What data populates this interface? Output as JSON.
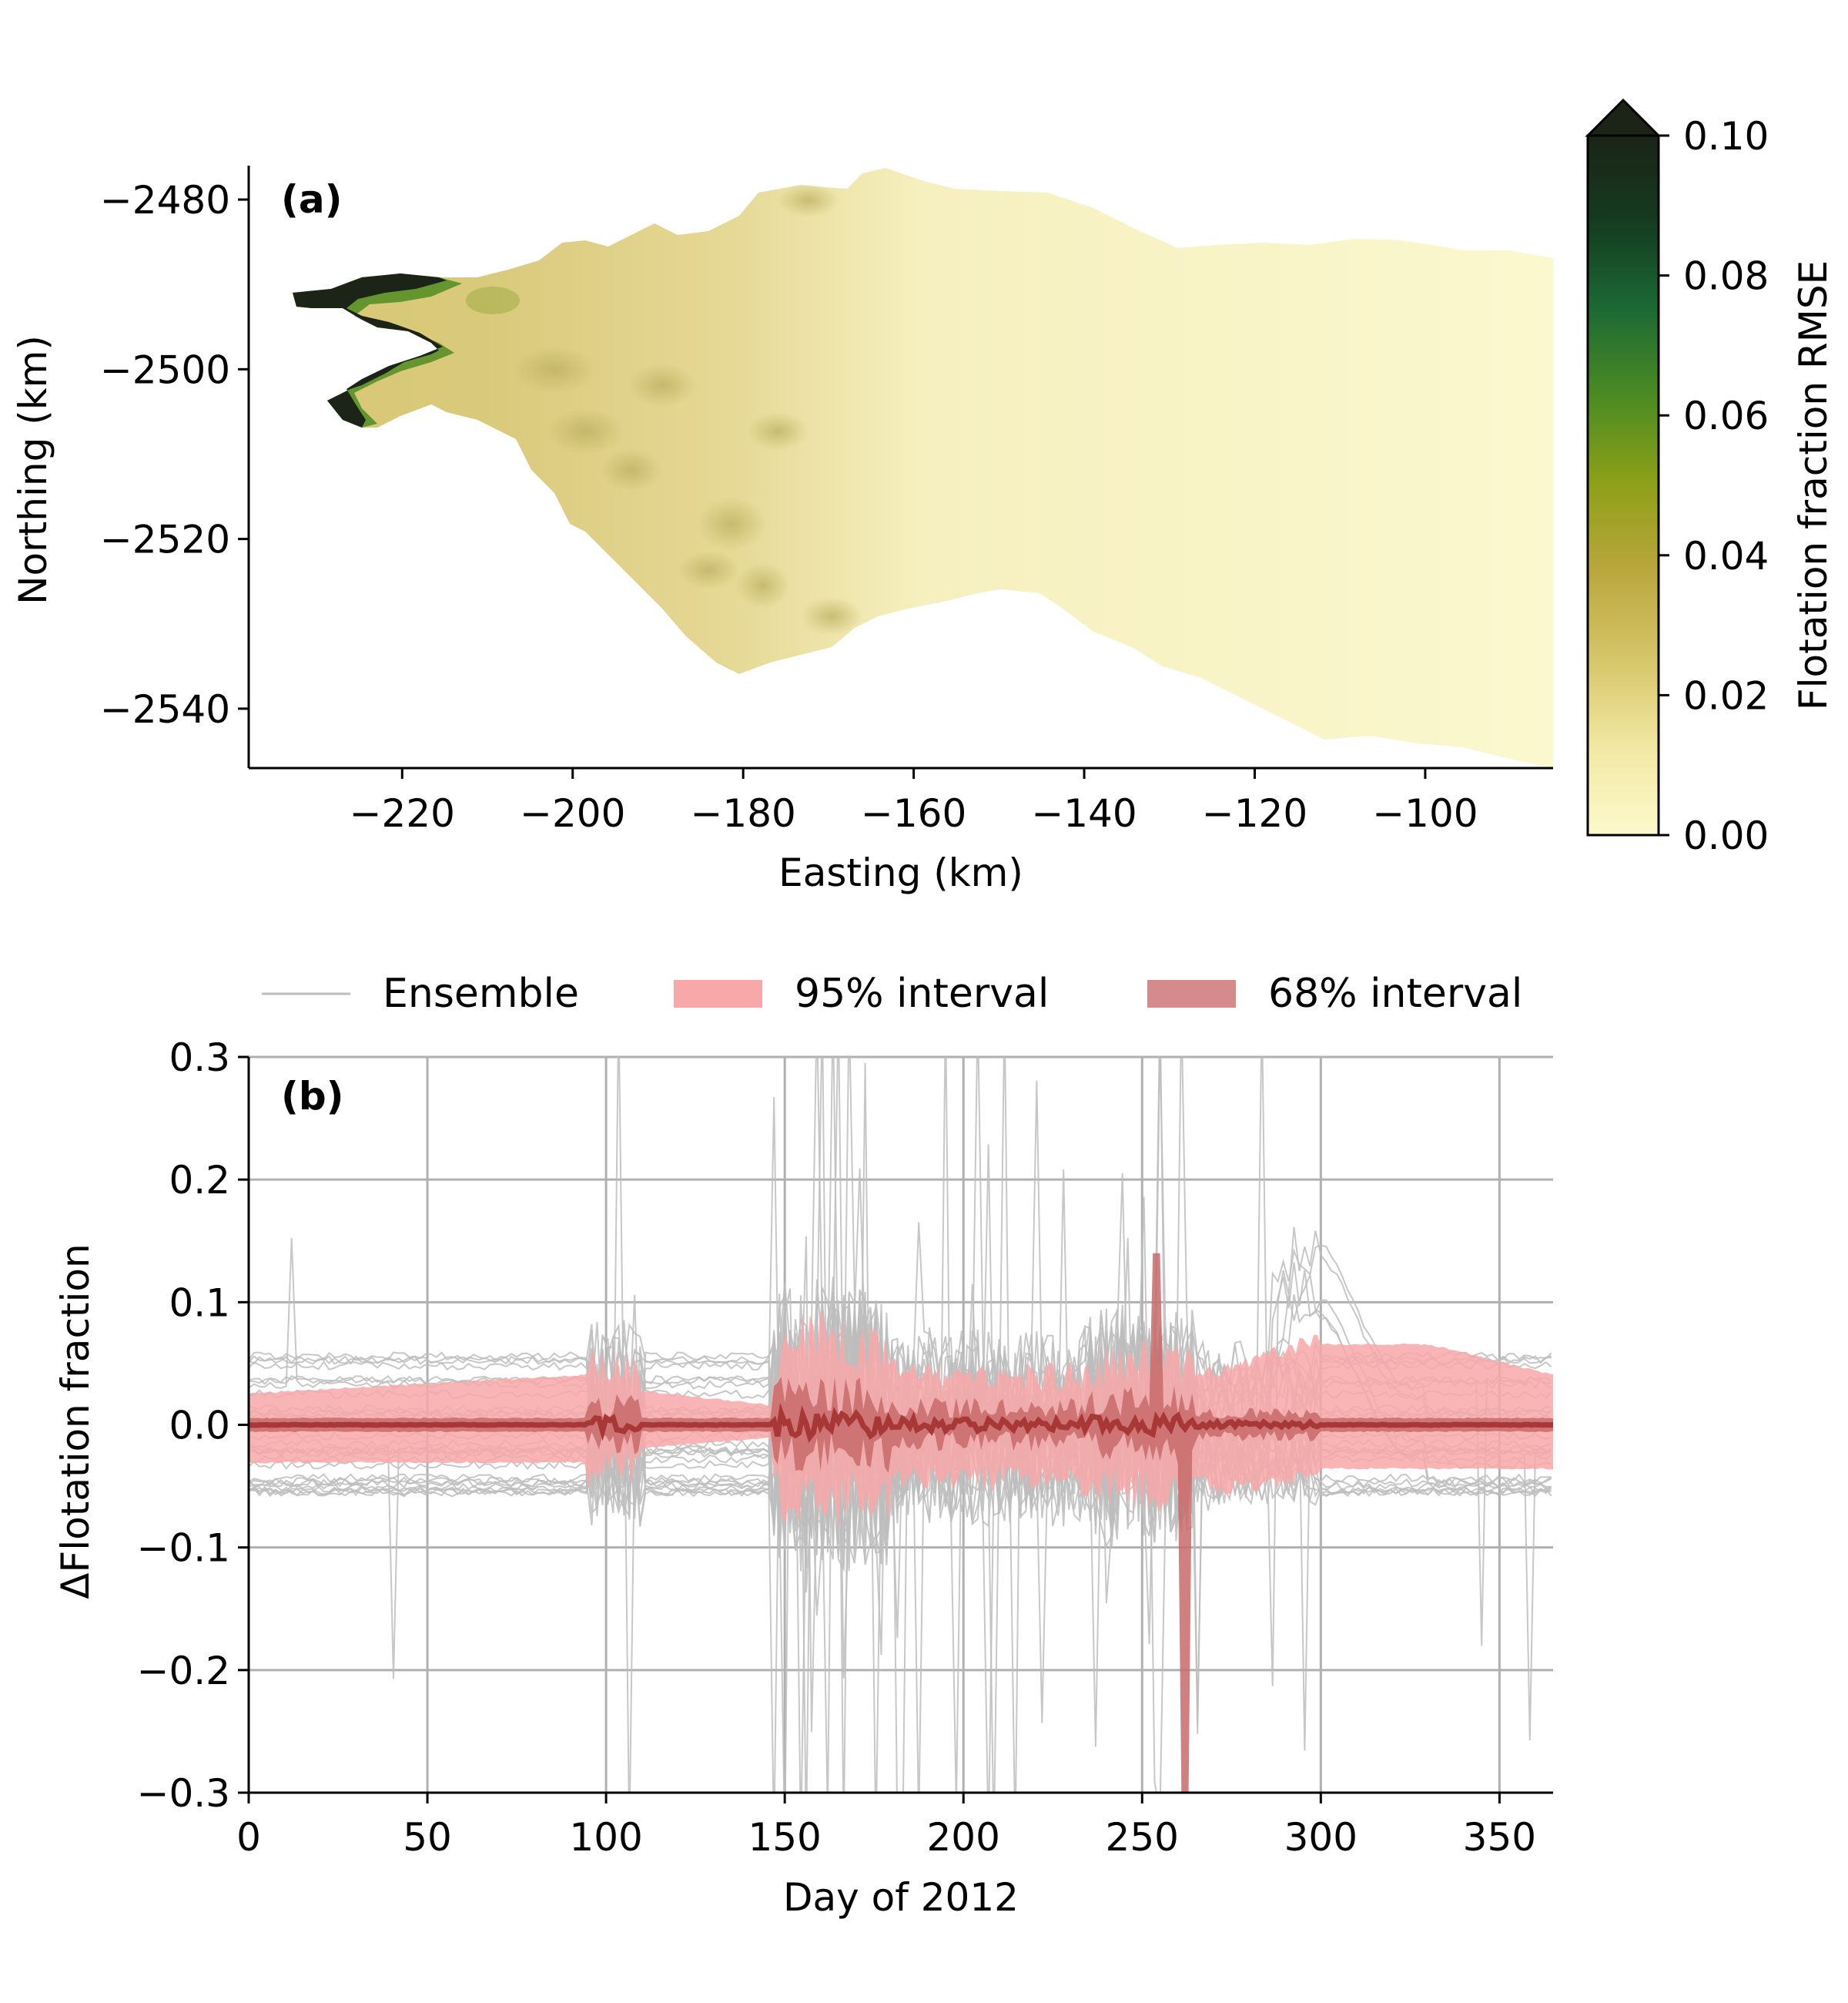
{
  "chart_data": [
    {
      "panel_label": "(a)",
      "type": "heatmap",
      "xlabel": "Easting (km)",
      "ylabel": "Northing (km)",
      "xlim": [
        -238,
        -85
      ],
      "ylim": [
        -2547,
        -2476
      ],
      "xticks": [
        -220,
        -200,
        -180,
        -160,
        -140,
        -120,
        -100
      ],
      "yticks": [
        -2480,
        -2500,
        -2520,
        -2540
      ],
      "colorbar": {
        "label": "Flotation fraction RMSE",
        "range": [
          0.0,
          0.1
        ],
        "ticks": [
          "0.00",
          "0.02",
          "0.04",
          "0.06",
          "0.08",
          "0.10"
        ],
        "extend": "max",
        "colors": [
          "#fcf9cc",
          "#f3e9a6",
          "#d6c66a",
          "#b9a63c",
          "#8fa018",
          "#4f8c22",
          "#1c6a34",
          "#153a20",
          "#1b2417"
        ]
      },
      "description_values": {
        "terminus_rmse": 0.1,
        "trunk_rmse": 0.02,
        "interior_rmse": 0.0
      }
    },
    {
      "panel_label": "(b)",
      "type": "line",
      "xlabel": "Day of 2012",
      "ylabel": "ΔFlotation fraction",
      "xlim": [
        0,
        365
      ],
      "ylim": [
        -0.3,
        0.3
      ],
      "xticks": [
        0,
        50,
        100,
        150,
        200,
        250,
        300,
        350
      ],
      "yticks": [
        "0.3",
        "0.2",
        "0.1",
        "0.0",
        "−0.1",
        "−0.2",
        "−0.3"
      ],
      "grid": true,
      "legend": {
        "placement": "top",
        "entries": [
          {
            "label": "Ensemble",
            "color": "#bdbdbd"
          },
          {
            "label": "95% interval",
            "color": "#f8a8a8"
          },
          {
            "label": "68% interval",
            "color": "#d58b8b"
          }
        ]
      },
      "interval_95_x": [
        0,
        95,
        100,
        147,
        150,
        200,
        250,
        275,
        300,
        330,
        365
      ],
      "interval_95_upper": [
        0.025,
        0.04,
        0.03,
        0.015,
        0.05,
        0.025,
        0.03,
        0.04,
        0.065,
        0.065,
        0.04
      ],
      "interval_95_lower": [
        -0.03,
        -0.03,
        -0.02,
        -0.01,
        -0.04,
        -0.03,
        -0.035,
        -0.045,
        -0.035,
        -0.035,
        -0.035
      ],
      "median_color": "#a83838",
      "ensemble_color": "#bdbdbd",
      "ensemble_members": 30
    }
  ]
}
